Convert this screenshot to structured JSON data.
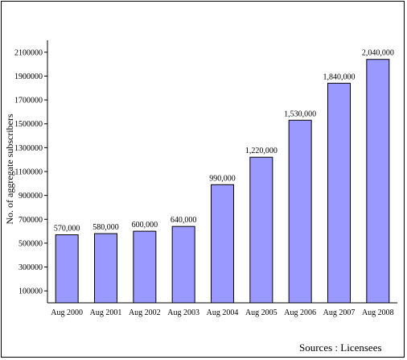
{
  "chart_data": {
    "type": "bar",
    "categories": [
      "Aug 2000",
      "Aug 2001",
      "Aug 2002",
      "Aug 2003",
      "Aug 2004",
      "Aug 2005",
      "Aug 2006",
      "Aug 2007",
      "Aug 2008"
    ],
    "values": [
      570000,
      580000,
      600000,
      640000,
      990000,
      1220000,
      1530000,
      1840000,
      2040000
    ],
    "data_labels": [
      "570,000",
      "580,000",
      "600,000",
      "640,000",
      "990,000",
      "1,220,000",
      "1,530,000",
      "1,840,000",
      "2,040,000"
    ],
    "ylabel": "No. of aggregate subscribers",
    "yticks": [
      100000,
      300000,
      500000,
      700000,
      900000,
      1100000,
      1300000,
      1500000,
      1700000,
      1900000,
      2100000
    ],
    "ytick_labels": [
      "100000",
      "300000",
      "500000",
      "700000",
      "900000",
      "1100000",
      "1300000",
      "1500000",
      "1700000",
      "1900000",
      "2100000"
    ],
    "ylim": [
      0,
      2200000
    ],
    "grid": false,
    "bar_color": "#9999ff"
  },
  "source": "Sources : Licensees"
}
